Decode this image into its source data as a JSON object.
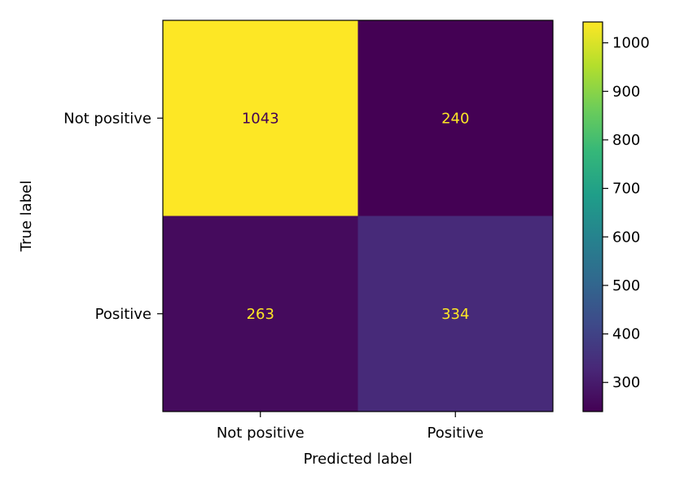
{
  "chart_data": {
    "type": "heatmap",
    "title": "",
    "xlabel": "Predicted label",
    "ylabel": "True label",
    "x_categories": [
      "Not positive",
      "Positive"
    ],
    "y_categories": [
      "Not positive",
      "Positive"
    ],
    "values": [
      [
        1043,
        240
      ],
      [
        263,
        334
      ]
    ],
    "colormap": "viridis",
    "colorbar": {
      "range": [
        240,
        1043
      ],
      "ticks": [
        300,
        400,
        500,
        600,
        700,
        800,
        900,
        1000
      ]
    },
    "colors": {
      "high": "#fde725",
      "low": "#440154",
      "text_on_dark": "#fde725",
      "text_on_light": "#440154"
    }
  }
}
